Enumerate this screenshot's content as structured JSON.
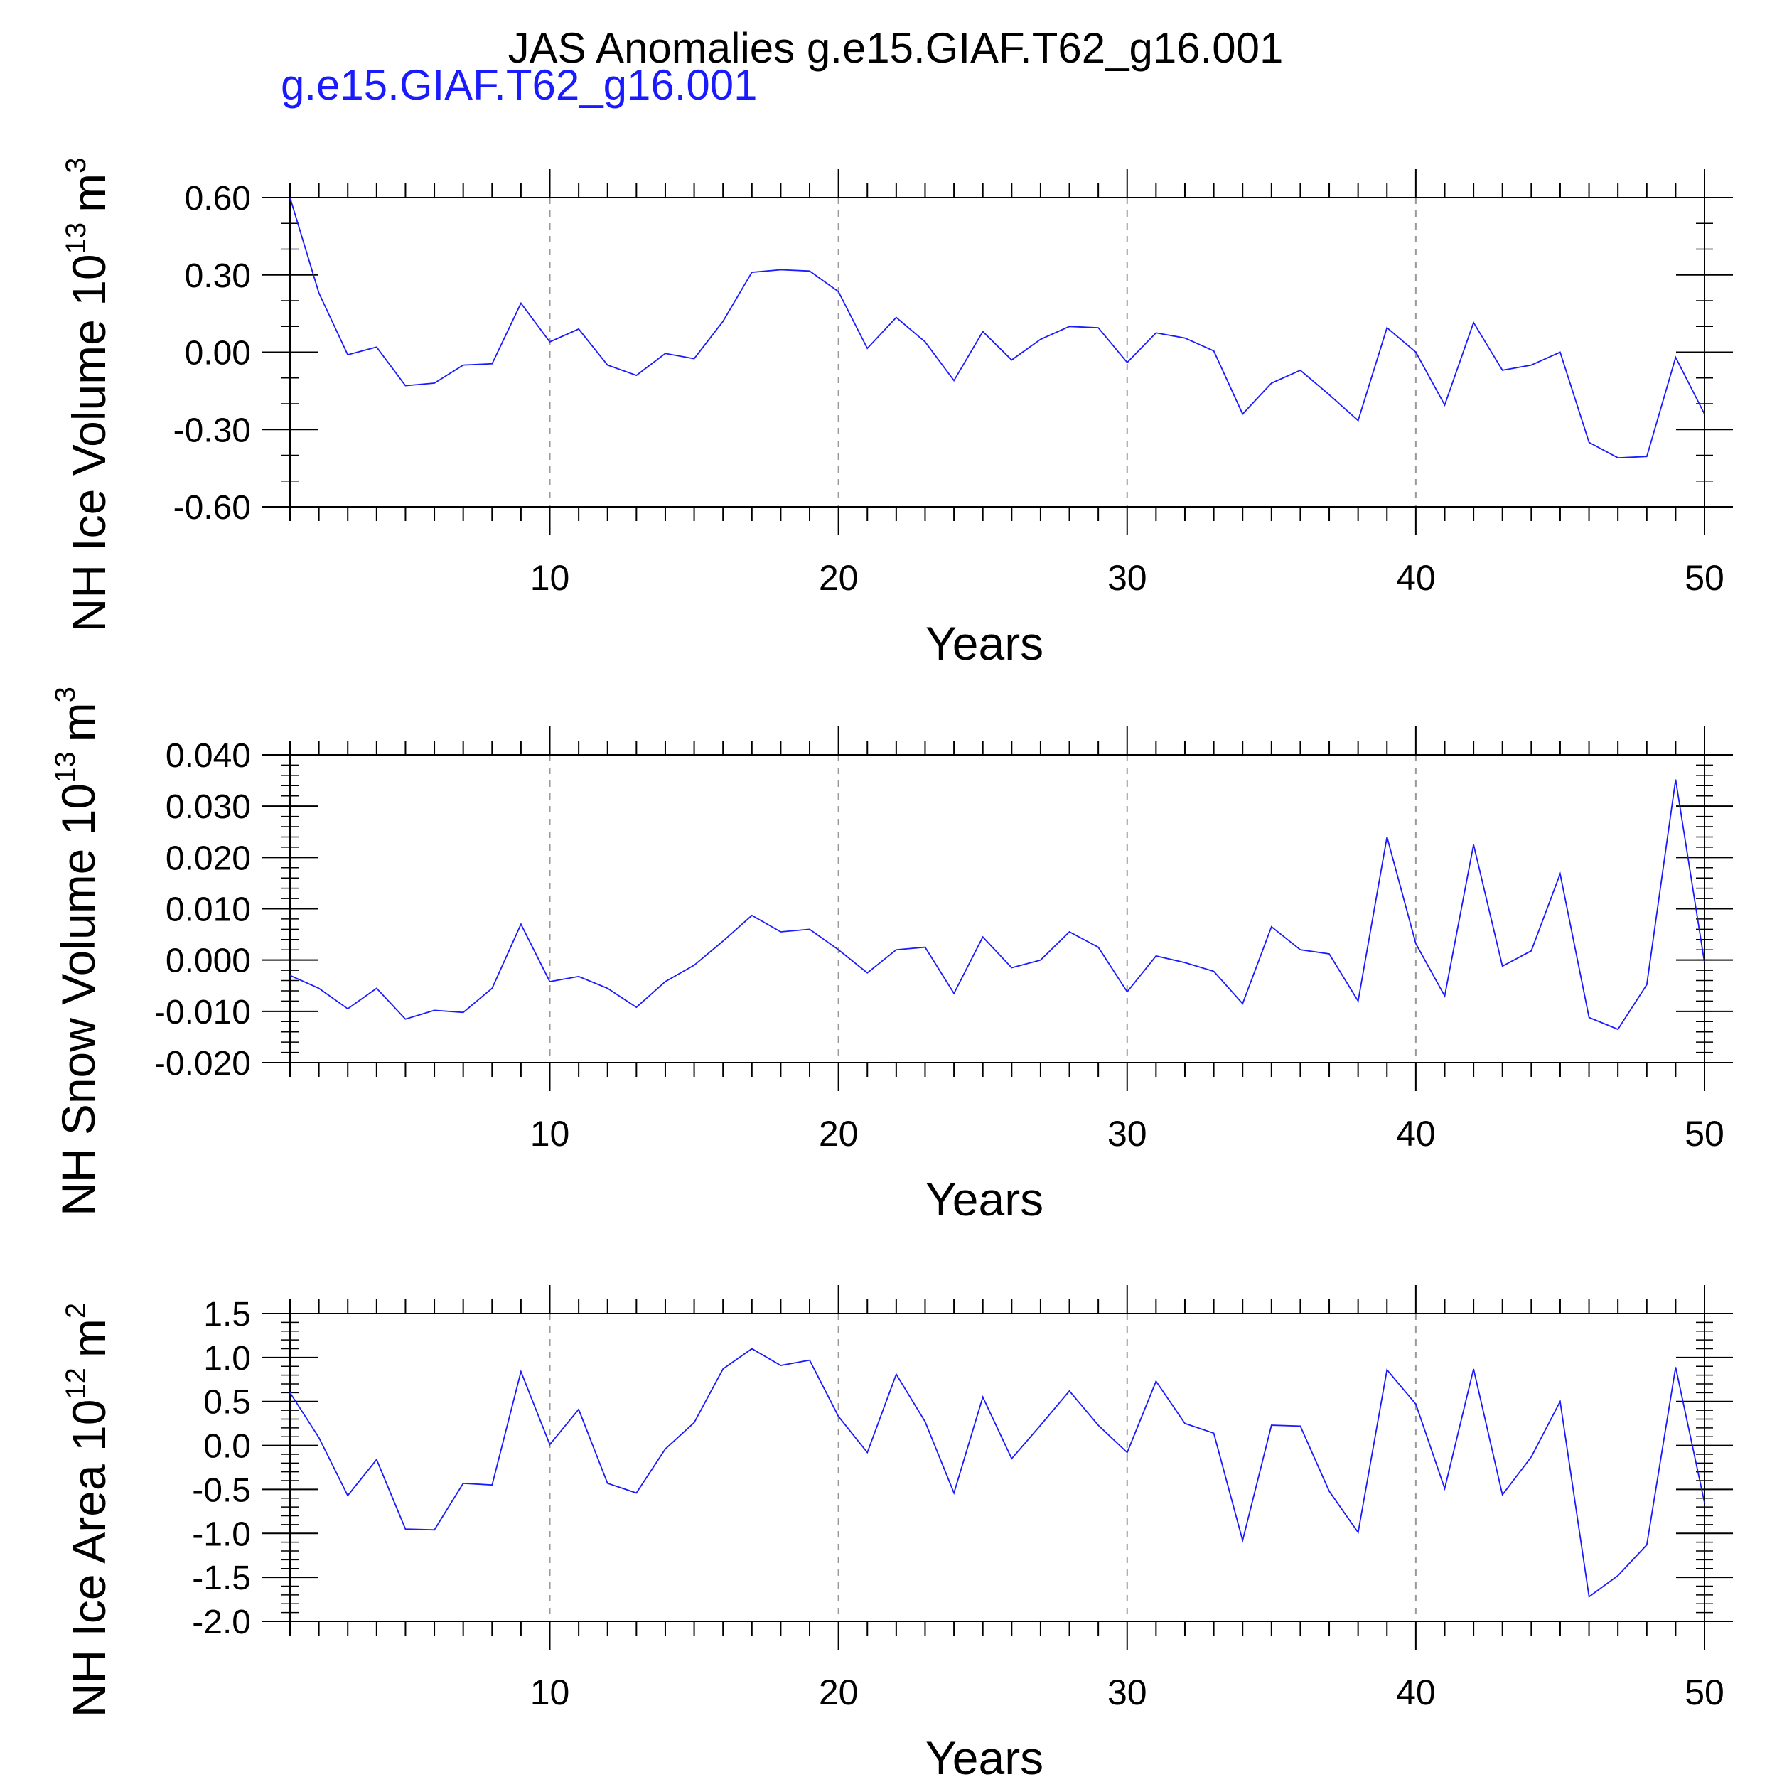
{
  "title": "JAS Anomalies g.e15.GIAF.T62_g16.001",
  "subtitle": "g.e15.GIAF.T62_g16.001",
  "colors": {
    "line": "#1a1aff",
    "subtitle": "#1a1aff",
    "axis": "#000000",
    "grid": "#999999"
  },
  "chart_data": [
    {
      "type": "line",
      "name": "ice-volume",
      "ylabel_main": "NH Ice Volume 10",
      "ylabel_exp": "13",
      "ylabel_unit": "m",
      "ylabel_unit_exp": "3",
      "xlabel": "Years",
      "xlim": [
        1,
        50
      ],
      "ylim": [
        -0.6,
        0.6
      ],
      "xticks": [
        10,
        20,
        30,
        40,
        50
      ],
      "yticks": [
        -0.6,
        -0.3,
        0.0,
        0.3,
        0.6
      ],
      "yticklabels": [
        "-0.60",
        "-0.30",
        "0.00",
        "0.30",
        "0.60"
      ],
      "yminor_step": 0.1,
      "x": [
        1,
        2,
        3,
        4,
        5,
        6,
        7,
        8,
        9,
        10,
        11,
        12,
        13,
        14,
        15,
        16,
        17,
        18,
        19,
        20,
        21,
        22,
        23,
        24,
        25,
        26,
        27,
        28,
        29,
        30,
        31,
        32,
        33,
        34,
        35,
        36,
        37,
        38,
        39,
        40,
        41,
        42,
        43,
        44,
        45,
        46,
        47,
        48,
        49,
        50
      ],
      "values": [
        0.6,
        0.23,
        -0.01,
        0.02,
        -0.13,
        -0.12,
        -0.05,
        -0.045,
        0.19,
        0.04,
        0.09,
        -0.05,
        -0.09,
        -0.005,
        -0.025,
        0.12,
        0.31,
        0.32,
        0.315,
        0.235,
        0.015,
        0.135,
        0.04,
        -0.11,
        0.08,
        -0.03,
        0.05,
        0.1,
        0.095,
        -0.04,
        0.075,
        0.055,
        0.005,
        -0.24,
        -0.12,
        -0.07,
        -0.165,
        -0.265,
        0.095,
        0.0,
        -0.205,
        0.115,
        -0.07,
        -0.05,
        0.0,
        -0.35,
        -0.41,
        -0.405,
        -0.02,
        -0.24
      ]
    },
    {
      "type": "line",
      "name": "snow-volume",
      "ylabel_main": "NH Snow Volume 10",
      "ylabel_exp": "13",
      "ylabel_unit": "m",
      "ylabel_unit_exp": "3",
      "xlabel": "Years",
      "xlim": [
        1,
        50
      ],
      "ylim": [
        -0.02,
        0.04
      ],
      "xticks": [
        10,
        20,
        30,
        40,
        50
      ],
      "yticks": [
        -0.02,
        -0.01,
        0.0,
        0.01,
        0.02,
        0.03,
        0.04
      ],
      "yticklabels": [
        "-0.020",
        "-0.010",
        "0.000",
        "0.010",
        "0.020",
        "0.030",
        "0.040"
      ],
      "yminor_step": 0.002,
      "x": [
        1,
        2,
        3,
        4,
        5,
        6,
        7,
        8,
        9,
        10,
        11,
        12,
        13,
        14,
        15,
        16,
        17,
        18,
        19,
        20,
        21,
        22,
        23,
        24,
        25,
        26,
        27,
        28,
        29,
        30,
        31,
        32,
        33,
        34,
        35,
        36,
        37,
        38,
        39,
        40,
        41,
        42,
        43,
        44,
        45,
        46,
        47,
        48,
        49,
        50
      ],
      "values": [
        -0.003,
        -0.0055,
        -0.0095,
        -0.0055,
        -0.0115,
        -0.0098,
        -0.0102,
        -0.0055,
        0.007,
        -0.0042,
        -0.0032,
        -0.0055,
        -0.0092,
        -0.0042,
        -0.001,
        0.0037,
        0.0087,
        0.0055,
        0.006,
        0.002,
        -0.0025,
        0.002,
        0.0025,
        -0.0065,
        0.0045,
        -0.0015,
        0.0,
        0.0055,
        0.0025,
        -0.0062,
        0.0008,
        -0.0005,
        -0.0022,
        -0.0085,
        0.0065,
        0.002,
        0.0012,
        -0.008,
        0.024,
        0.0032,
        -0.007,
        0.0225,
        -0.0012,
        0.0018,
        0.0168,
        -0.0112,
        -0.0135,
        -0.0048,
        0.0352,
        -0.0005
      ]
    },
    {
      "type": "line",
      "name": "ice-area",
      "ylabel_main": "NH Ice Area 10",
      "ylabel_exp": "12",
      "ylabel_unit": "m",
      "ylabel_unit_exp": "2",
      "xlabel": "Years",
      "xlim": [
        1,
        50
      ],
      "ylim": [
        -2.0,
        1.5
      ],
      "xticks": [
        10,
        20,
        30,
        40,
        50
      ],
      "yticks": [
        -2.0,
        -1.5,
        -1.0,
        -0.5,
        0.0,
        0.5,
        1.0,
        1.5
      ],
      "yticklabels": [
        "-2.0",
        "-1.5",
        "-1.0",
        "-0.5",
        "0.0",
        "0.5",
        "1.0",
        "1.5"
      ],
      "yminor_step": 0.1,
      "x": [
        1,
        2,
        3,
        4,
        5,
        6,
        7,
        8,
        9,
        10,
        11,
        12,
        13,
        14,
        15,
        16,
        17,
        18,
        19,
        20,
        21,
        22,
        23,
        24,
        25,
        26,
        27,
        28,
        29,
        30,
        31,
        32,
        33,
        34,
        35,
        36,
        37,
        38,
        39,
        40,
        41,
        42,
        43,
        44,
        45,
        46,
        47,
        48,
        49,
        50
      ],
      "values": [
        0.6,
        0.09,
        -0.57,
        -0.16,
        -0.95,
        -0.96,
        -0.43,
        -0.45,
        0.84,
        0.01,
        0.41,
        -0.43,
        -0.54,
        -0.04,
        0.26,
        0.87,
        1.1,
        0.91,
        0.97,
        0.33,
        -0.08,
        0.81,
        0.27,
        -0.54,
        0.55,
        -0.15,
        0.23,
        0.62,
        0.23,
        -0.08,
        0.73,
        0.25,
        0.14,
        -1.08,
        0.23,
        0.22,
        -0.52,
        -0.99,
        0.86,
        0.47,
        -0.49,
        0.87,
        -0.56,
        -0.13,
        0.5,
        -1.72,
        -1.48,
        -1.13,
        0.89,
        -0.65
      ]
    }
  ]
}
